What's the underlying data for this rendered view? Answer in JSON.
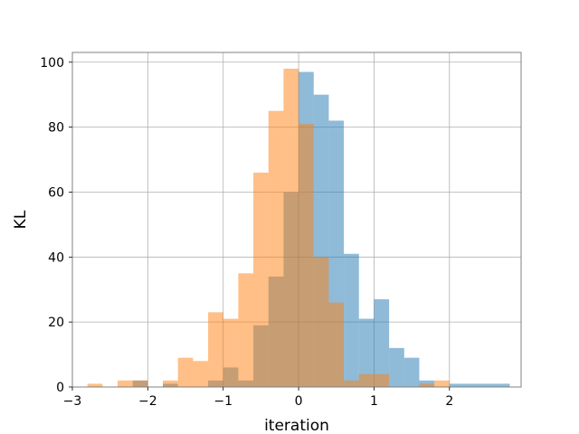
{
  "chart_data": {
    "type": "bar",
    "title": "",
    "xlabel": "iteration",
    "ylabel": "KL",
    "xlim": [
      -3.0,
      2.95
    ],
    "ylim": [
      0,
      103
    ],
    "xticks": [
      -3,
      -2,
      -1,
      0,
      1,
      2
    ],
    "yticks": [
      0,
      20,
      40,
      60,
      80,
      100
    ],
    "xtick_labels": [
      "−3",
      "−2",
      "−1",
      "0",
      "1",
      "2"
    ],
    "ytick_labels": [
      "0",
      "20",
      "40",
      "60",
      "80",
      "100"
    ],
    "grid": true,
    "alpha": 0.5,
    "series": [
      {
        "color": "#1f77b4",
        "bin_edges": [
          -2.2,
          -2.0,
          -1.8,
          -1.6,
          -1.4,
          -1.2,
          -1.0,
          -0.8,
          -0.6,
          -0.4,
          -0.2,
          0.0,
          0.2,
          0.4,
          0.6,
          0.8,
          1.0,
          1.2,
          1.4,
          1.6,
          1.8,
          2.0,
          2.2,
          2.4,
          2.6,
          2.8
        ],
        "counts": [
          2,
          0,
          1,
          0,
          0,
          2,
          6,
          2,
          19,
          34,
          60,
          97,
          90,
          82,
          41,
          21,
          27,
          12,
          9,
          2,
          0,
          1,
          1,
          1,
          1
        ]
      },
      {
        "color": "#ff7f0e",
        "bin_edges": [
          -2.8,
          -2.6,
          -2.4,
          -2.2,
          -2.0,
          -1.8,
          -1.6,
          -1.4,
          -1.2,
          -1.0,
          -0.8,
          -0.6,
          -0.4,
          -0.2,
          0.0,
          0.2,
          0.4,
          0.6,
          0.8,
          1.0,
          1.2,
          1.4,
          1.6,
          1.8,
          2.0
        ],
        "counts": [
          1,
          0,
          2,
          2,
          0,
          2,
          9,
          8,
          23,
          21,
          35,
          66,
          85,
          98,
          81,
          40,
          26,
          2,
          4,
          4,
          0,
          0,
          1,
          2
        ]
      }
    ]
  }
}
